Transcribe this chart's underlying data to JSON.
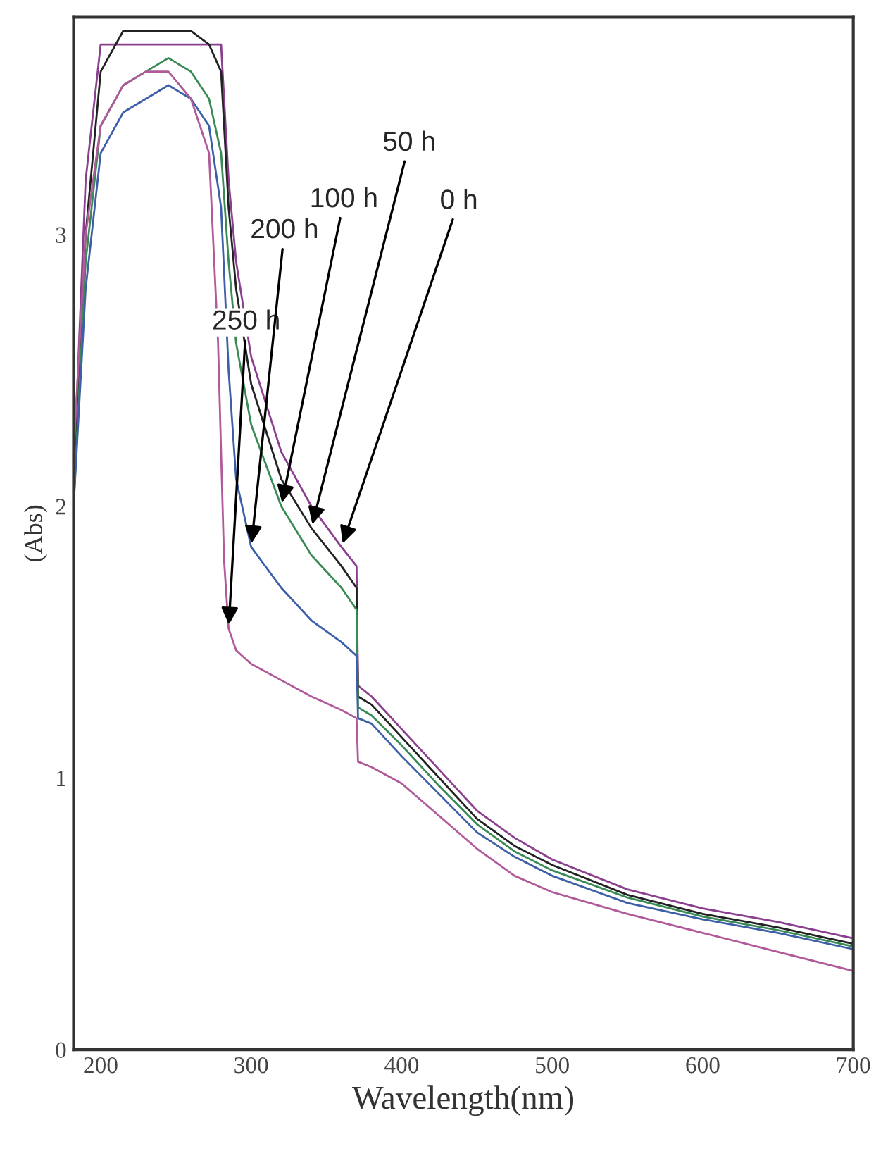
{
  "chart_data": {
    "type": "line",
    "xlabel": "Wavelength(nm)",
    "ylabel": "(Abs)",
    "xlim": [
      182,
      700
    ],
    "ylim": [
      0,
      3.8
    ],
    "xticks": [
      200,
      300,
      400,
      500,
      600,
      700
    ],
    "yticks": [
      0,
      1,
      2,
      3
    ],
    "grid": false,
    "line_style": "solid",
    "marker": "none",
    "series": [
      {
        "color": "#8a3f8f",
        "x": [
          182,
          190,
          200,
          215,
          230,
          245,
          260,
          272,
          280,
          285,
          290,
          300,
          320,
          340,
          360,
          370,
          371,
          380,
          400,
          425,
          450,
          475,
          500,
          550,
          600,
          650,
          700
        ],
        "values": [
          2.1,
          3.2,
          3.7,
          null,
          null,
          null,
          null,
          null,
          3.7,
          3.2,
          2.9,
          2.55,
          2.2,
          2.0,
          1.85,
          1.78,
          1.34,
          1.3,
          1.18,
          1.03,
          0.88,
          0.78,
          0.7,
          0.59,
          0.52,
          0.47,
          0.41
        ]
      },
      {
        "color": "#222222",
        "x": [
          182,
          190,
          200,
          215,
          230,
          245,
          260,
          272,
          280,
          285,
          290,
          300,
          320,
          340,
          360,
          370,
          371,
          380,
          400,
          425,
          450,
          475,
          500,
          550,
          600,
          650,
          700
        ],
        "values": [
          2.0,
          3.0,
          3.6,
          3.75,
          null,
          null,
          3.75,
          3.7,
          3.6,
          3.1,
          2.8,
          2.45,
          2.1,
          1.92,
          1.78,
          1.7,
          1.3,
          1.27,
          1.15,
          1.0,
          0.85,
          0.75,
          0.68,
          0.57,
          0.5,
          0.45,
          0.39
        ]
      },
      {
        "color": "#3a8a55",
        "x": [
          182,
          190,
          200,
          215,
          230,
          245,
          260,
          272,
          280,
          285,
          290,
          300,
          320,
          340,
          360,
          370,
          371,
          380,
          400,
          425,
          450,
          475,
          500,
          550,
          600,
          650,
          700
        ],
        "values": [
          2.0,
          2.9,
          3.4,
          3.55,
          3.6,
          3.65,
          3.6,
          3.5,
          3.3,
          2.9,
          2.6,
          2.3,
          2.0,
          1.82,
          1.7,
          1.62,
          1.26,
          1.23,
          1.12,
          0.97,
          0.83,
          0.73,
          0.66,
          0.56,
          0.49,
          0.44,
          0.38
        ]
      },
      {
        "color": "#3d5fa8",
        "x": [
          182,
          190,
          200,
          215,
          230,
          245,
          260,
          272,
          280,
          285,
          290,
          300,
          320,
          340,
          360,
          370,
          371,
          380,
          400,
          425,
          450,
          475,
          500,
          550,
          600,
          650,
          700
        ],
        "values": [
          2.0,
          2.8,
          3.3,
          3.45,
          3.5,
          3.55,
          3.5,
          3.4,
          3.1,
          2.5,
          2.1,
          1.85,
          1.7,
          1.58,
          1.5,
          1.45,
          1.22,
          1.2,
          1.08,
          0.94,
          0.8,
          0.71,
          0.64,
          0.54,
          0.48,
          0.43,
          0.37
        ]
      },
      {
        "color": "#b05a9a",
        "x": [
          182,
          190,
          200,
          215,
          230,
          245,
          260,
          272,
          278,
          282,
          285,
          290,
          300,
          320,
          340,
          360,
          370,
          371,
          380,
          400,
          425,
          450,
          475,
          500,
          550,
          600,
          650,
          700
        ],
        "values": [
          2.2,
          3.0,
          3.4,
          3.55,
          3.6,
          3.6,
          3.5,
          3.3,
          2.6,
          1.8,
          1.55,
          1.47,
          1.42,
          1.36,
          1.3,
          1.25,
          1.22,
          1.06,
          1.04,
          0.98,
          0.86,
          0.74,
          0.64,
          0.58,
          0.5,
          0.43,
          0.36,
          0.29
        ]
      }
    ],
    "annotations": [
      {
        "text": "250 h",
        "x": 285,
        "y": 1.55
      },
      {
        "text": "200 h",
        "x": 300,
        "y": 1.85
      },
      {
        "text": "100 h",
        "x": 320,
        "y": 2.0
      },
      {
        "text": "50 h",
        "x": 340,
        "y": 1.92
      },
      {
        "text": "0 h",
        "x": 360,
        "y": 1.85
      }
    ]
  }
}
